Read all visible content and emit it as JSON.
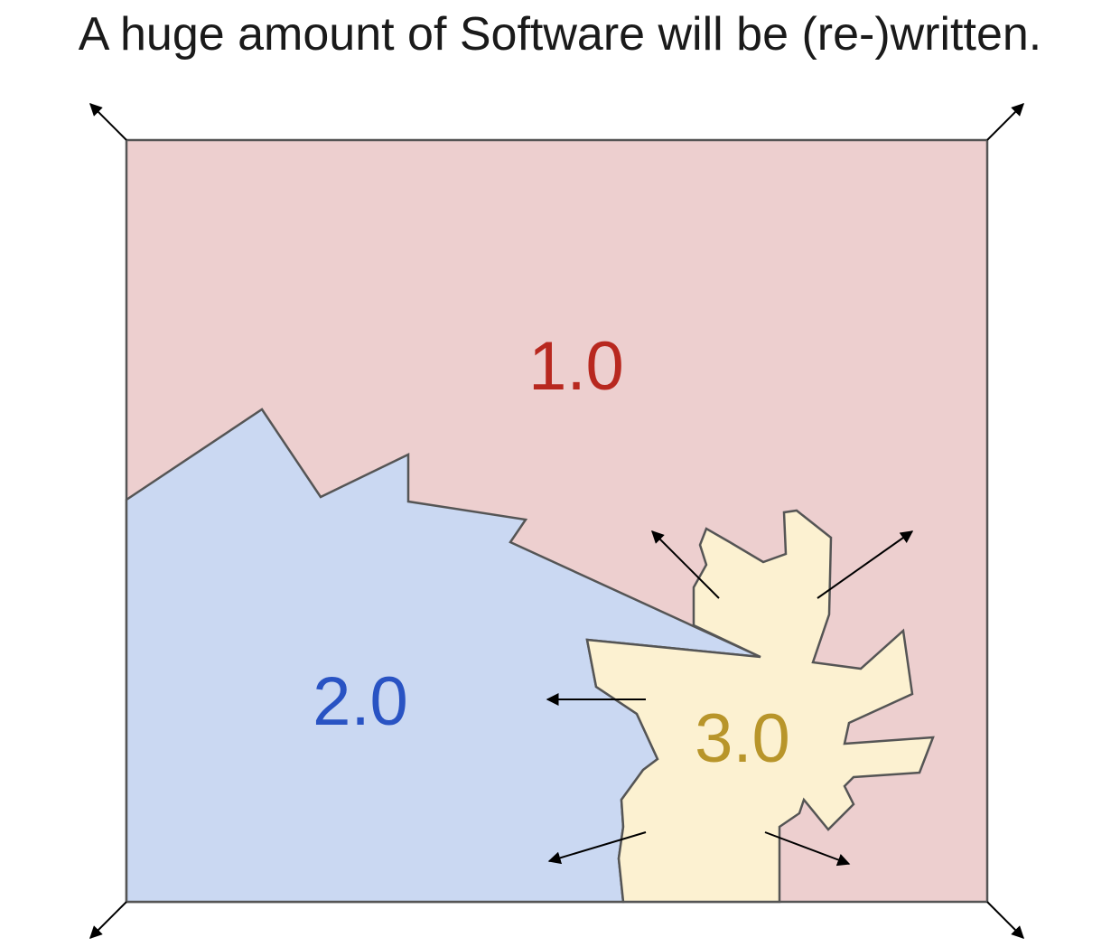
{
  "title": "A huge amount of Software will be (re-)written.",
  "regions": {
    "software_1": {
      "label": "1.0",
      "fill": "#edcfcf",
      "text_color": "#b8281f"
    },
    "software_2": {
      "label": "2.0",
      "fill": "#cad8f2",
      "text_color": "#2953c3"
    },
    "software_3": {
      "label": "3.0",
      "fill": "#fcf1d1",
      "text_color": "#b8952a"
    }
  },
  "colors": {
    "outline": "#555555",
    "arrow": "#000000"
  }
}
